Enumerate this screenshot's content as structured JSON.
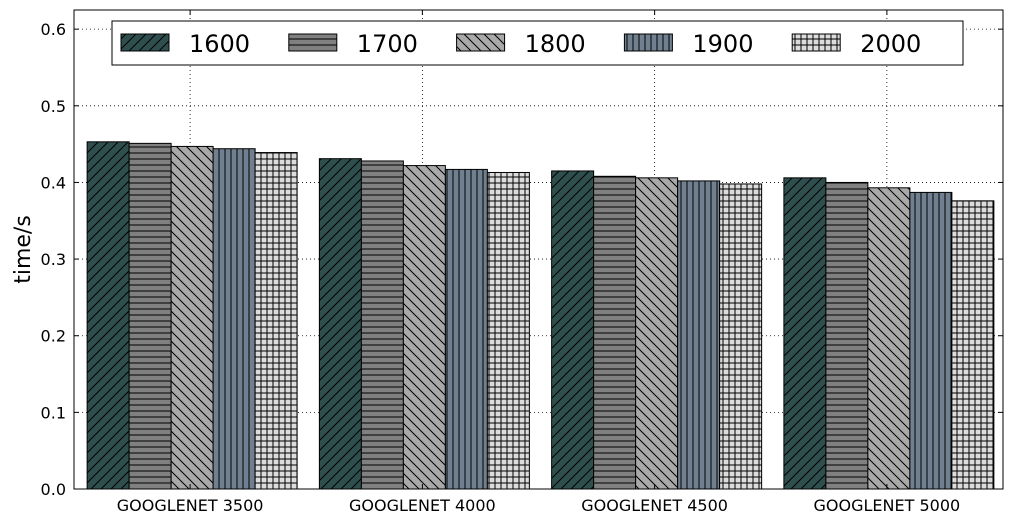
{
  "chart_data": {
    "type": "bar",
    "title": "",
    "xlabel": "",
    "ylabel": "time/s",
    "ylim": [
      0,
      0.625
    ],
    "yticks": [
      "0.0",
      "0.1",
      "0.2",
      "0.3",
      "0.4",
      "0.5",
      "0.6"
    ],
    "grid": true,
    "legend_position": "top",
    "categories": [
      "GOOGLENET 3500",
      "GOOGLENET 4000",
      "GOOGLENET 4500",
      "GOOGLENET 5000"
    ],
    "series": [
      {
        "name": "1600",
        "values": [
          0.453,
          0.431,
          0.415,
          0.406
        ],
        "color": "#2f4f4f",
        "pattern": "diagonal-forward"
      },
      {
        "name": "1700",
        "values": [
          0.451,
          0.428,
          0.408,
          0.4
        ],
        "color": "#808080",
        "pattern": "horizontal"
      },
      {
        "name": "1800",
        "values": [
          0.447,
          0.422,
          0.406,
          0.393
        ],
        "color": "#a9a9a9",
        "pattern": "diagonal-backward"
      },
      {
        "name": "1900",
        "values": [
          0.444,
          0.417,
          0.402,
          0.387
        ],
        "color": "#708090",
        "pattern": "vertical"
      },
      {
        "name": "2000",
        "values": [
          0.439,
          0.413,
          0.398,
          0.376
        ],
        "color": "#dcdcdc",
        "pattern": "grid"
      }
    ]
  }
}
